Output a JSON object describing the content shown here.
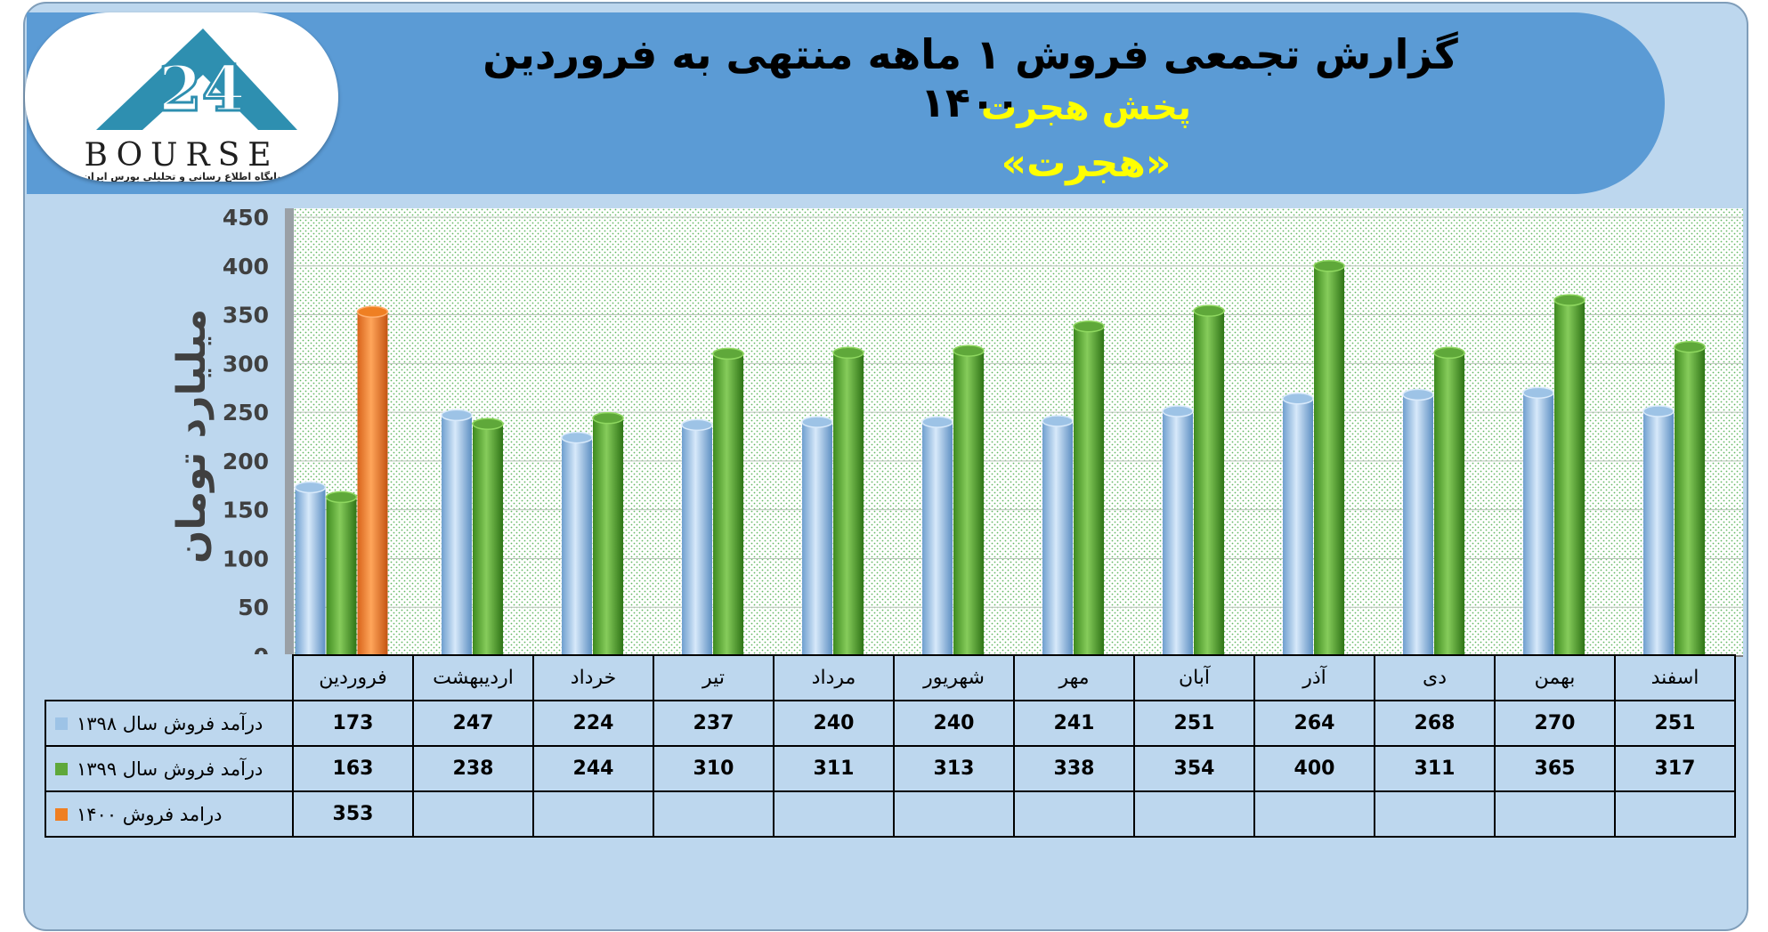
{
  "header": {
    "title": "گزارش تجمعی فروش ۱ ماهه منتهی به فروردین ۱۴۰۰",
    "subtitle": "پخش هجرت",
    "company": "«هجرت»"
  },
  "logo": {
    "word": "BOURSE",
    "tagline": "پایگاه اطلاع رسانی و تحلیلی بورس ایران"
  },
  "colors": {
    "series_1398": "#9dc3e6",
    "series_1399": "#5fa83a",
    "series_1400": "#ef7f22",
    "header_bg": "#5b9bd5",
    "frame_bg": "#bdd7ee",
    "title_yellow": "#ffff00"
  },
  "chart_data": {
    "type": "bar",
    "style": "3d-cylinder",
    "ylabel": "میلیارد تومان",
    "ylim": [
      0,
      450
    ],
    "yticks": [
      0,
      50,
      100,
      150,
      200,
      250,
      300,
      350,
      400,
      450
    ],
    "grid": true,
    "legend": "data-table",
    "categories": [
      "فروردین",
      "اردیبهشت",
      "خرداد",
      "تیر",
      "مرداد",
      "شهریور",
      "مهر",
      "آبان",
      "آذر",
      "دی",
      "بهمن",
      "اسفند"
    ],
    "series": [
      {
        "name": "درآمد فروش سال ۱۳۹۸",
        "values": [
          173,
          247,
          224,
          237,
          240,
          240,
          241,
          251,
          264,
          268,
          270,
          251
        ]
      },
      {
        "name": "درآمد فروش سال ۱۳۹۹",
        "values": [
          163,
          238,
          244,
          310,
          311,
          313,
          338,
          354,
          400,
          311,
          365,
          317
        ]
      },
      {
        "name": "درامد فروش ۱۴۰۰",
        "values": [
          353,
          null,
          null,
          null,
          null,
          null,
          null,
          null,
          null,
          null,
          null,
          null
        ]
      }
    ]
  }
}
